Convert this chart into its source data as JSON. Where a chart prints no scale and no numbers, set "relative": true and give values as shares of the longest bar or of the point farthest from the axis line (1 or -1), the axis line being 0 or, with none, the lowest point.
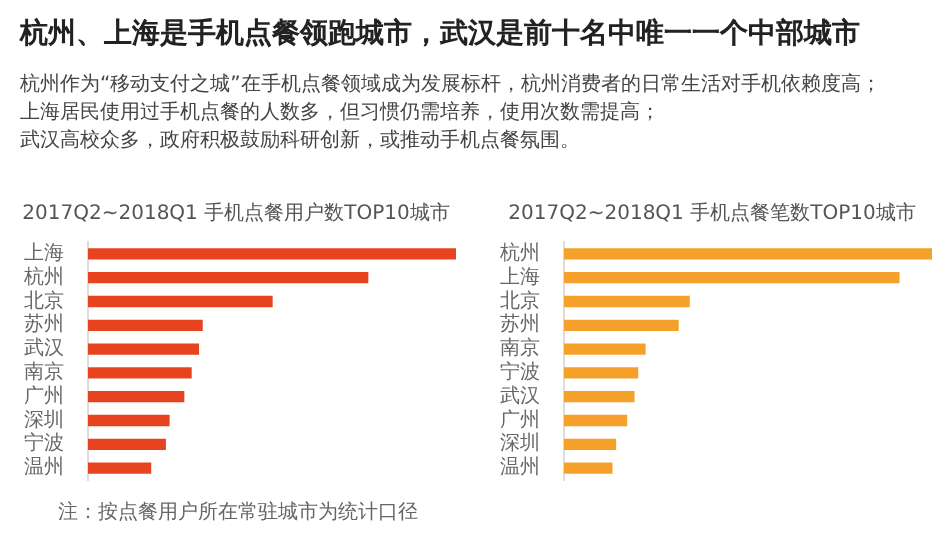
{
  "chart_data": [
    {
      "type": "other",
      "title": "杭州、上海是手机点餐领跑城市，武汉是前十名中唯一一个中部城市",
      "annotations": [
        "杭州作为“移动支付之城”在手机点餐领域成为发展标杆，杭州消费者的日常生活对手机依赖度高；",
        "上海居民使用过手机点餐的人数多，但习惯仍需培养，使用次数需提高；",
        "武汉高校众多，政府积极鼓励科研创新，或推动手机点餐氛围。"
      ]
    },
    {
      "type": "bar",
      "orientation": "horizontal",
      "relative": true,
      "title": "2017Q2~2018Q1 手机点餐用户数TOP10城市",
      "categories": [
        "上海",
        "杭州",
        "北京",
        "苏州",
        "武汉",
        "南京",
        "广州",
        "深圳",
        "宁波",
        "温州"
      ],
      "values": [
        1,
        0.76,
        0.5,
        0.31,
        0.3,
        0.28,
        0.26,
        0.22,
        0.21,
        0.17
      ],
      "color": "#e8431f",
      "annotations": [
        "注：按点餐用户所在常驻城市为统计口径"
      ]
    },
    {
      "type": "bar",
      "orientation": "horizontal",
      "relative": true,
      "title": "2017Q2~2018Q1 手机点餐笔数TOP10城市",
      "categories": [
        "杭州",
        "上海",
        "北京",
        "苏州",
        "南京",
        "宁波",
        "武汉",
        "广州",
        "深圳",
        "温州"
      ],
      "values": [
        1,
        0.91,
        0.34,
        0.31,
        0.22,
        0.2,
        0.19,
        0.17,
        0.14,
        0.13
      ],
      "color": "#f5a02a"
    }
  ]
}
